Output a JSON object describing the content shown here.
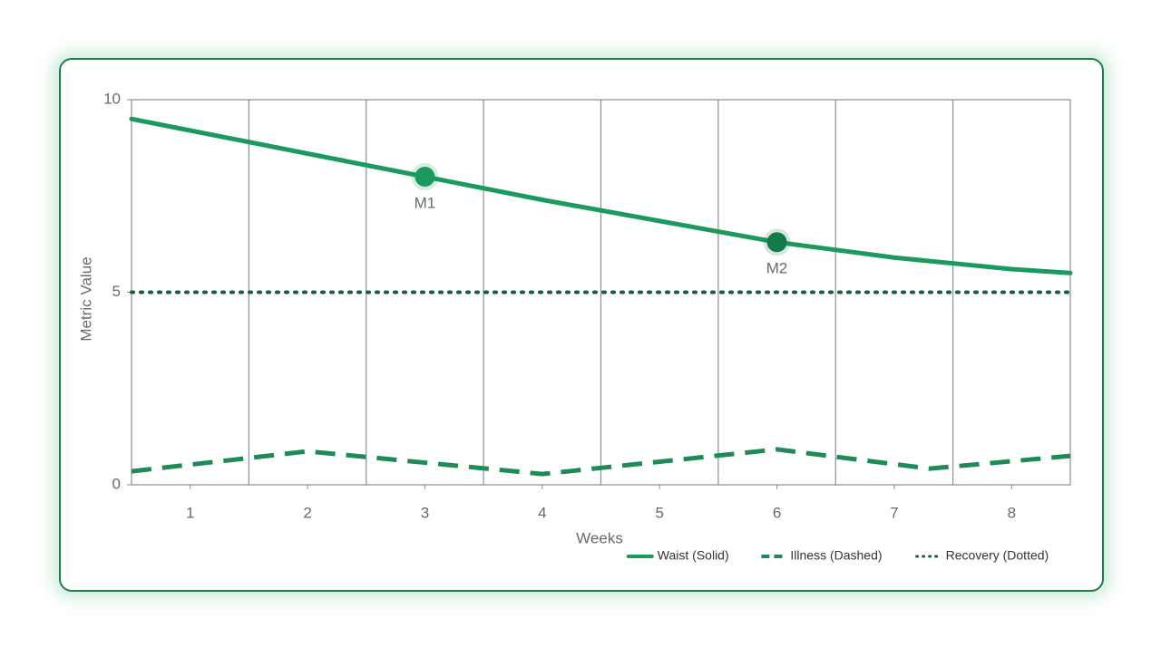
{
  "chart_data": {
    "type": "line",
    "xlabel": "Weeks",
    "ylabel": "Metric Value",
    "xlim": [
      0.5,
      8.5
    ],
    "xticks": [
      1,
      2,
      3,
      4,
      5,
      6,
      7,
      8
    ],
    "xgrid": [
      1.5,
      2.5,
      3.5,
      4.5,
      5.5,
      6.5,
      7.5
    ],
    "ylim": [
      0,
      10
    ],
    "yticks": [
      0,
      5,
      10
    ],
    "legend": "bottom-right",
    "series": [
      {
        "name": "Waist (Solid)",
        "color": "#1a9a5c",
        "style": "solid",
        "x": [
          0.5,
          1,
          2,
          3,
          4,
          5,
          6,
          7,
          8,
          8.5
        ],
        "values": [
          9.5,
          9.2,
          8.6,
          8.0,
          7.4,
          6.85,
          6.3,
          5.9,
          5.6,
          5.5
        ]
      },
      {
        "name": "Illness (Dashed)",
        "color": "#1e8a55",
        "style": "dashed",
        "x": [
          0.5,
          2,
          4,
          6,
          7.3,
          8.5
        ],
        "values": [
          0.35,
          0.87,
          0.28,
          0.92,
          0.42,
          0.75
        ]
      },
      {
        "name": "Recovery (Dotted)",
        "color": "#145f3a",
        "style": "dotted",
        "x": [
          0.5,
          8.5
        ],
        "values": [
          5,
          5
        ]
      }
    ],
    "markers": [
      {
        "label": "M1",
        "x": 3,
        "y": 8.0,
        "color": "#1a9a5c"
      },
      {
        "label": "M2",
        "x": 6,
        "y": 6.3,
        "color": "#157a4a"
      }
    ]
  }
}
